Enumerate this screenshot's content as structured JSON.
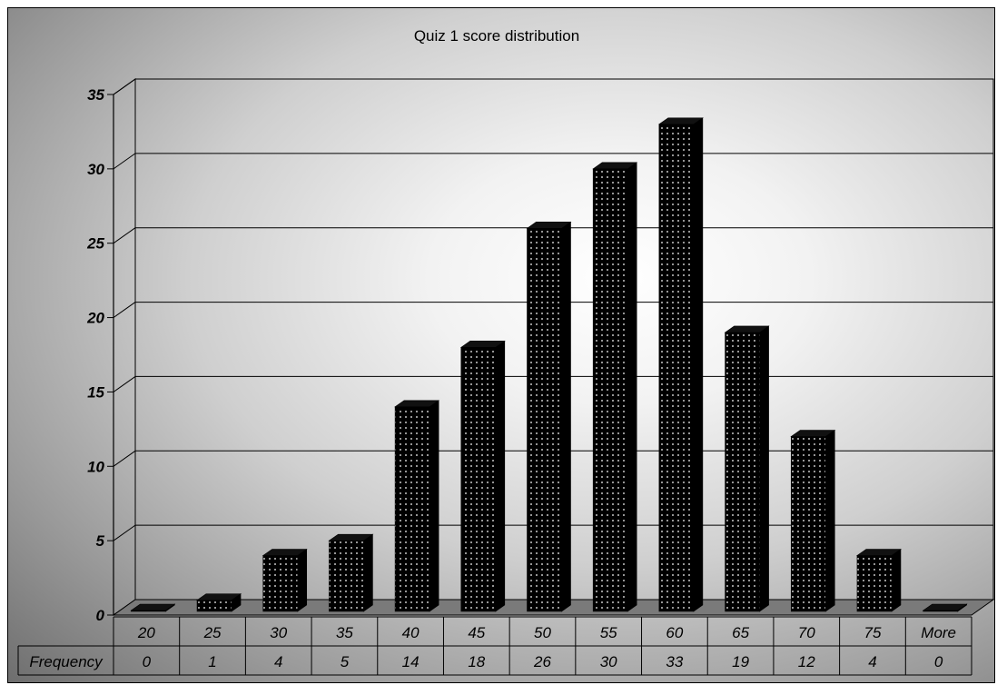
{
  "chart_data": {
    "type": "bar",
    "title": "Quiz 1 score distribution",
    "categories": [
      "20",
      "25",
      "30",
      "35",
      "40",
      "45",
      "50",
      "55",
      "60",
      "65",
      "70",
      "75",
      "More"
    ],
    "series": [
      {
        "name": "Frequency",
        "values": [
          0,
          1,
          4,
          5,
          14,
          18,
          26,
          30,
          33,
          19,
          12,
          4,
          0
        ]
      }
    ],
    "ylim": [
      0,
      35
    ],
    "yticks": [
      0,
      5,
      10,
      15,
      20,
      25,
      30,
      35
    ],
    "grid": true,
    "data_table": true,
    "colors": {
      "bar": "#000000",
      "bar_dots": "#ffffff",
      "floor": "#7a7a7a"
    }
  }
}
